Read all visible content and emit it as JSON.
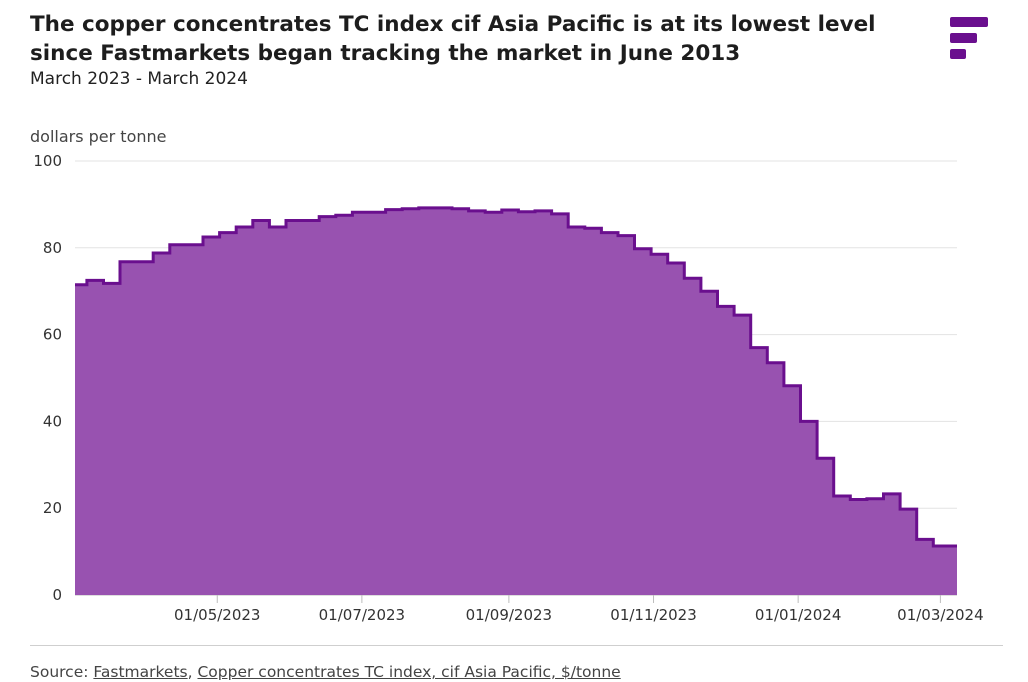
{
  "header": {
    "title": "The copper concentrates TC index cif Asia Pacific is at its lowest level since Fastmarkets began tracking the market in June 2013",
    "subtitle": "March 2023 - March 2024"
  },
  "source": {
    "prefix": "Source: ",
    "link1": "Fastmarkets",
    "sep": ", ",
    "link2": "Copper concentrates TC index, cif Asia Pacific, $/tonne"
  },
  "colors": {
    "fill": "#9852b0",
    "line": "#6a0f8e",
    "grid": "#e3e3e3",
    "logo": "#6a0f8e"
  },
  "icons": {
    "logo": "fastmarkets-logo-icon"
  },
  "chart_data": {
    "type": "area",
    "title": "The copper concentrates TC index cif Asia Pacific is at its lowest level since Fastmarkets began tracking the market in June 2013",
    "subtitle": "March 2023 - March 2024",
    "ylabel": "dollars per tonne",
    "ylim": [
      0,
      100
    ],
    "yticks": [
      0,
      20,
      40,
      60,
      80,
      100
    ],
    "xlim": [
      "2023-03-02",
      "2024-03-08"
    ],
    "xticks": [
      {
        "date": "2023-05-01",
        "label": "01/05/2023"
      },
      {
        "date": "2023-07-01",
        "label": "01/07/2023"
      },
      {
        "date": "2023-09-01",
        "label": "01/09/2023"
      },
      {
        "date": "2023-11-01",
        "label": "01/11/2023"
      },
      {
        "date": "2024-01-01",
        "label": "01/01/2024"
      },
      {
        "date": "2024-03-01",
        "label": "01/03/2024"
      }
    ],
    "grid": true,
    "step": true,
    "series": [
      {
        "values": [
          {
            "x": "2023-03-03",
            "y": 71.5
          },
          {
            "x": "2023-03-07",
            "y": 72.5
          },
          {
            "x": "2023-03-14",
            "y": 71.8
          },
          {
            "x": "2023-03-21",
            "y": 76.8
          },
          {
            "x": "2023-04-04",
            "y": 78.8
          },
          {
            "x": "2023-04-11",
            "y": 80.7
          },
          {
            "x": "2023-04-25",
            "y": 82.5
          },
          {
            "x": "2023-05-02",
            "y": 83.5
          },
          {
            "x": "2023-05-09",
            "y": 84.8
          },
          {
            "x": "2023-05-16",
            "y": 86.3
          },
          {
            "x": "2023-05-23",
            "y": 84.8
          },
          {
            "x": "2023-05-30",
            "y": 86.3
          },
          {
            "x": "2023-06-13",
            "y": 87.2
          },
          {
            "x": "2023-06-20",
            "y": 87.5
          },
          {
            "x": "2023-06-27",
            "y": 88.2
          },
          {
            "x": "2023-07-11",
            "y": 88.8
          },
          {
            "x": "2023-07-18",
            "y": 89.0
          },
          {
            "x": "2023-07-25",
            "y": 89.2
          },
          {
            "x": "2023-08-08",
            "y": 89.0
          },
          {
            "x": "2023-08-15",
            "y": 88.5
          },
          {
            "x": "2023-08-22",
            "y": 88.2
          },
          {
            "x": "2023-08-29",
            "y": 88.7
          },
          {
            "x": "2023-09-05",
            "y": 88.3
          },
          {
            "x": "2023-09-12",
            "y": 88.5
          },
          {
            "x": "2023-09-19",
            "y": 87.8
          },
          {
            "x": "2023-09-26",
            "y": 84.8
          },
          {
            "x": "2023-10-03",
            "y": 84.5
          },
          {
            "x": "2023-10-10",
            "y": 83.5
          },
          {
            "x": "2023-10-17",
            "y": 82.8
          },
          {
            "x": "2023-10-24",
            "y": 79.8
          },
          {
            "x": "2023-10-31",
            "y": 78.5
          },
          {
            "x": "2023-11-07",
            "y": 76.5
          },
          {
            "x": "2023-11-14",
            "y": 73.0
          },
          {
            "x": "2023-11-21",
            "y": 70.0
          },
          {
            "x": "2023-11-28",
            "y": 66.5
          },
          {
            "x": "2023-12-05",
            "y": 64.5
          },
          {
            "x": "2023-12-12",
            "y": 57.0
          },
          {
            "x": "2023-12-19",
            "y": 53.5
          },
          {
            "x": "2023-12-26",
            "y": 48.2
          },
          {
            "x": "2024-01-02",
            "y": 40.0
          },
          {
            "x": "2024-01-09",
            "y": 31.5
          },
          {
            "x": "2024-01-16",
            "y": 22.8
          },
          {
            "x": "2024-01-23",
            "y": 22.0
          },
          {
            "x": "2024-01-30",
            "y": 22.2
          },
          {
            "x": "2024-02-06",
            "y": 23.3
          },
          {
            "x": "2024-02-13",
            "y": 19.8
          },
          {
            "x": "2024-02-20",
            "y": 12.8
          },
          {
            "x": "2024-02-27",
            "y": 11.3
          },
          {
            "x": "2024-03-05",
            "y": 11.3
          }
        ]
      }
    ]
  }
}
